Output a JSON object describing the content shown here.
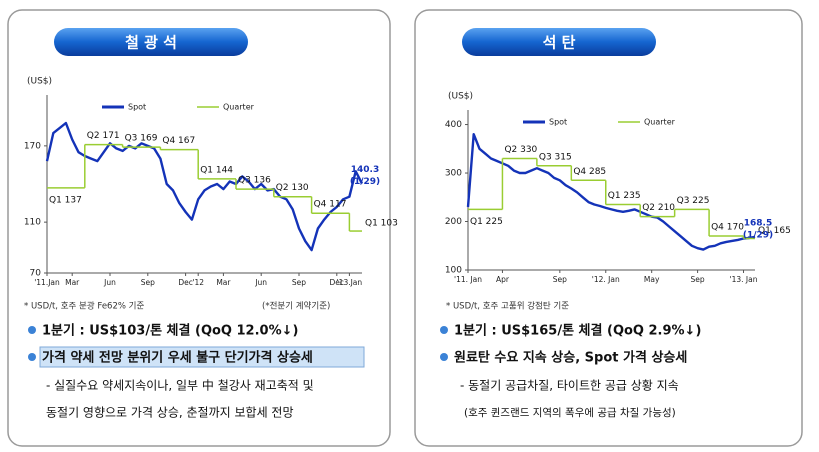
{
  "chart_data": [
    {
      "type": "line",
      "title": "철 광 석",
      "ylabel": "(US$)",
      "xlim": [
        0,
        25
      ],
      "ylim": [
        70,
        210
      ],
      "xticks": [
        {
          "value": 0,
          "label": "'11.Jan"
        },
        {
          "value": 2,
          "label": "Mar"
        },
        {
          "value": 5,
          "label": "Jun"
        },
        {
          "value": 8,
          "label": "Sep"
        },
        {
          "value": 11,
          "label": "Dec"
        },
        {
          "value": 12,
          "label": "'12"
        },
        {
          "value": 14,
          "label": "Mar"
        },
        {
          "value": 17,
          "label": "Jun"
        },
        {
          "value": 20,
          "label": "Sep"
        },
        {
          "value": 23,
          "label": "Dec"
        },
        {
          "value": 24,
          "label": "'13.Jan"
        }
      ],
      "yticks": [
        70,
        110,
        170
      ],
      "series": [
        {
          "name": "Spot",
          "color": "#1433b8",
          "x": [
            0,
            0.5,
            1,
            1.5,
            2,
            2.5,
            3,
            3.5,
            4,
            4.5,
            5,
            5.5,
            6,
            6.5,
            7,
            7.5,
            8,
            8.5,
            9,
            9.5,
            10,
            10.5,
            11,
            11.5,
            12,
            12.5,
            13,
            13.5,
            14,
            14.5,
            15,
            15.5,
            16,
            16.5,
            17,
            17.5,
            18,
            18.5,
            19,
            19.5,
            20,
            20.5,
            21,
            21.5,
            22,
            22.5,
            23,
            23.5,
            24,
            24.5,
            25
          ],
          "values": [
            158,
            180,
            184,
            188,
            175,
            165,
            162,
            160,
            158,
            165,
            172,
            168,
            166,
            170,
            168,
            172,
            170,
            168,
            160,
            140,
            135,
            125,
            118,
            112,
            128,
            135,
            138,
            140,
            136,
            142,
            140,
            146,
            142,
            136,
            140,
            135,
            136,
            130,
            128,
            120,
            105,
            95,
            88,
            105,
            112,
            118,
            122,
            128,
            130,
            150,
            140.3
          ]
        },
        {
          "name": "Quarter",
          "color": "#9acd32",
          "style": "step",
          "x": [
            0,
            3,
            6,
            9,
            12,
            15,
            18,
            21,
            24
          ],
          "values": [
            137,
            171,
            169,
            167,
            144,
            136,
            130,
            117,
            103
          ],
          "value_labels": [
            "Q1 137",
            "Q2 171",
            "Q3 169",
            "Q4 167",
            "Q1 144",
            "Q3 136",
            "Q2 130",
            "Q4 117",
            "Q1 103"
          ]
        }
      ],
      "annotations": [
        {
          "text": "140.3",
          "value": 140.3
        },
        {
          "text": "(1/29)"
        }
      ]
    },
    {
      "type": "line",
      "title": "석  탄",
      "ylabel": "(US$)",
      "xlim": [
        0,
        25
      ],
      "ylim": [
        100,
        430
      ],
      "xticks": [
        {
          "value": 0,
          "label": "'11. Jan"
        },
        {
          "value": 3,
          "label": "Apr"
        },
        {
          "value": 8,
          "label": "Sep"
        },
        {
          "value": 12,
          "label": "'12. Jan"
        },
        {
          "value": 16,
          "label": "May"
        },
        {
          "value": 20,
          "label": "Sep"
        },
        {
          "value": 24,
          "label": "'13. Jan"
        }
      ],
      "yticks": [
        100,
        200,
        300,
        400
      ],
      "series": [
        {
          "name": "Spot",
          "color": "#1433b8",
          "x": [
            0,
            0.5,
            1,
            1.5,
            2,
            2.5,
            3,
            3.5,
            4,
            4.5,
            5,
            5.5,
            6,
            6.5,
            7,
            7.5,
            8,
            8.5,
            9,
            9.5,
            10,
            10.5,
            11,
            11.5,
            12,
            12.5,
            13,
            13.5,
            14,
            14.5,
            15,
            15.5,
            16,
            16.5,
            17,
            17.5,
            18,
            18.5,
            19,
            19.5,
            20,
            20.5,
            21,
            21.5,
            22,
            22.5,
            23,
            23.5,
            24,
            24.5,
            25
          ],
          "values": [
            230,
            380,
            350,
            340,
            330,
            325,
            320,
            315,
            305,
            300,
            300,
            305,
            310,
            305,
            300,
            290,
            285,
            275,
            268,
            260,
            250,
            240,
            235,
            232,
            228,
            225,
            222,
            220,
            222,
            225,
            220,
            215,
            210,
            208,
            200,
            190,
            180,
            170,
            160,
            150,
            145,
            142,
            148,
            150,
            155,
            158,
            160,
            162,
            165,
            166,
            168.5
          ]
        },
        {
          "name": "Quarter",
          "color": "#9acd32",
          "style": "step",
          "x": [
            0,
            3,
            6,
            9,
            12,
            15,
            18,
            21,
            24
          ],
          "values": [
            225,
            330,
            315,
            285,
            235,
            210,
            225,
            170,
            165
          ],
          "value_labels": [
            "Q1 225",
            "Q2 330",
            "Q3 315",
            "Q4 285",
            "Q1 235",
            "Q2 210",
            "Q3 225",
            "Q4 170",
            "Q1 165"
          ]
        }
      ],
      "annotations": [
        {
          "text": "168.5",
          "value": 168.5
        },
        {
          "text": "(1/29)"
        }
      ]
    }
  ],
  "panels": [
    {
      "unit_note": "* USD/t, 호주 분광 Fe62% 기준",
      "basis_note": "(*전분기 계약기준)",
      "bullets": [
        "1분기 : US$103/톤 체결 (QoQ 12.0%↓)",
        "가격 약세 전망 분위기 우세 불구 단기가격 상승세"
      ],
      "details": [
        "- 실질수요 약세지속이나, 일부 中 철강사 재고축적 및",
        "동절기 영향으로 가격 상승, 춘절까지 보합세 전망"
      ]
    },
    {
      "unit_note": "* USD/t, 호주 고품위 강점탄 기준",
      "bullets": [
        "1분기 : US$165/톤 체결 (QoQ 2.9%↓)",
        "원료탄 수요 지속 상승, Spot 가격 상승세"
      ],
      "details": [
        "- 동절기 공급차질, 타이트한 공급 상황 지속",
        "(호주 퀸즈랜드 지역의 폭우에 공급 차질 가능성)"
      ]
    }
  ]
}
